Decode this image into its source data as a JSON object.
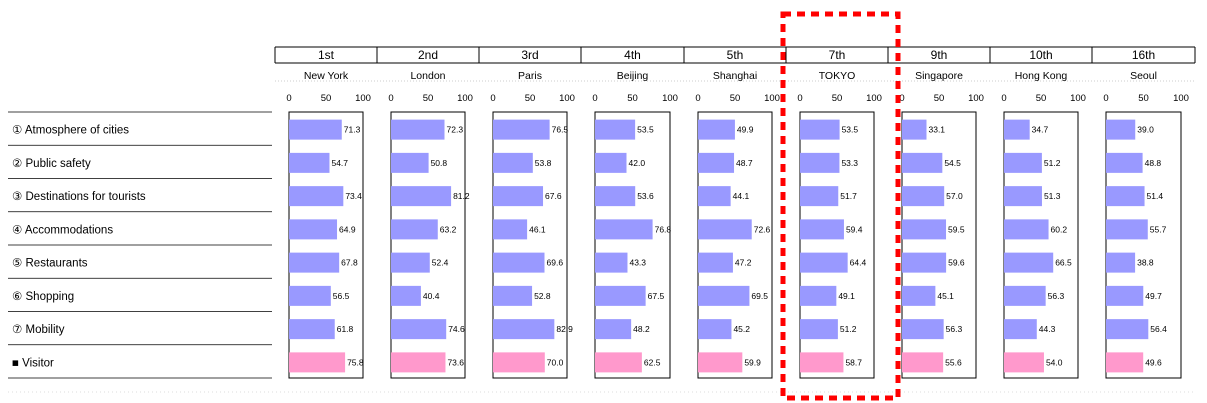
{
  "chart_data": {
    "type": "bar",
    "orientation": "horizontal",
    "axis_ticks": [
      "0",
      "50",
      "100"
    ],
    "xlim": [
      0,
      100
    ],
    "highlight_city_index": 5,
    "colors": {
      "criteria_bar": "#9999ff",
      "visitor_bar": "#ff99cc",
      "highlight_box": "#ff0000"
    },
    "categories": [
      "① Atmosphere of cities",
      "② Public safety",
      "③ Destinations for tourists",
      "④ Accommodations",
      "⑤ Restaurants",
      "⑥ Shopping",
      "⑦ Mobility",
      "■ Visitor"
    ],
    "series": [
      {
        "rank": "1st",
        "name": "New York",
        "values": [
          71.3,
          54.7,
          73.4,
          64.9,
          67.8,
          56.5,
          61.8,
          75.8
        ]
      },
      {
        "rank": "2nd",
        "name": "London",
        "values": [
          72.3,
          50.8,
          81.2,
          63.2,
          52.4,
          40.4,
          74.6,
          73.6
        ]
      },
      {
        "rank": "3rd",
        "name": "Paris",
        "values": [
          76.5,
          53.8,
          67.6,
          46.1,
          69.6,
          52.8,
          82.9,
          70.0
        ]
      },
      {
        "rank": "4th",
        "name": "Beijing",
        "values": [
          53.5,
          42.0,
          53.6,
          76.8,
          43.3,
          67.5,
          48.2,
          62.5
        ]
      },
      {
        "rank": "5th",
        "name": "Shanghai",
        "values": [
          49.9,
          48.7,
          44.1,
          72.6,
          47.2,
          69.5,
          45.2,
          59.9
        ]
      },
      {
        "rank": "7th",
        "name": "TOKYO",
        "values": [
          53.5,
          53.3,
          51.7,
          59.4,
          64.4,
          49.1,
          51.2,
          58.7
        ]
      },
      {
        "rank": "9th",
        "name": "Singapore",
        "values": [
          33.1,
          54.5,
          57.0,
          59.5,
          59.6,
          45.1,
          56.3,
          55.6
        ]
      },
      {
        "rank": "10th",
        "name": "Hong Kong",
        "values": [
          34.7,
          51.2,
          51.3,
          60.2,
          66.5,
          56.3,
          44.3,
          54.0
        ]
      },
      {
        "rank": "16th",
        "name": "Seoul",
        "values": [
          39.0,
          48.8,
          51.4,
          55.7,
          38.8,
          49.7,
          56.4,
          49.6
        ]
      }
    ]
  }
}
